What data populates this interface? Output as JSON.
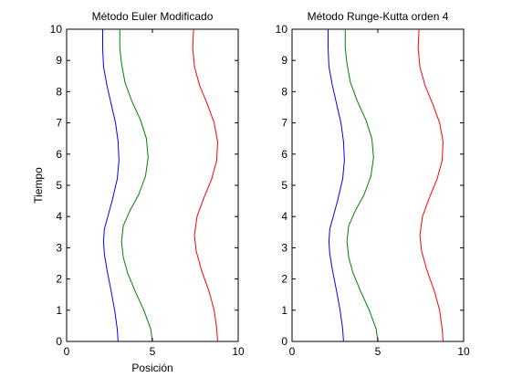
{
  "figure": {
    "background": "#ffffff",
    "axis_color": "#000000"
  },
  "chart_data": [
    {
      "type": "line",
      "title": "Método Euler Modificado",
      "xlabel": "Posición",
      "ylabel": "Tiempo",
      "xlim": [
        0,
        10
      ],
      "ylim": [
        0,
        10
      ],
      "xticks": [
        "0",
        "5",
        "10"
      ],
      "yticks": [
        "0",
        "1",
        "2",
        "3",
        "4",
        "5",
        "6",
        "7",
        "8",
        "9",
        "10"
      ],
      "grid": false,
      "series": [
        {
          "color": "#0000ff",
          "points": [
            [
              3.0,
              0
            ],
            [
              2.95,
              0.4
            ],
            [
              2.8,
              1.0
            ],
            [
              2.6,
              1.6
            ],
            [
              2.35,
              2.3
            ],
            [
              2.2,
              2.8
            ],
            [
              2.15,
              3.2
            ],
            [
              2.2,
              3.6
            ],
            [
              2.4,
              4.0
            ],
            [
              2.65,
              4.5
            ],
            [
              2.95,
              5.2
            ],
            [
              3.05,
              5.8
            ],
            [
              3.0,
              6.4
            ],
            [
              2.85,
              7.0
            ],
            [
              2.6,
              7.6
            ],
            [
              2.35,
              8.2
            ],
            [
              2.15,
              8.8
            ],
            [
              2.1,
              9.4
            ],
            [
              2.1,
              10
            ]
          ]
        },
        {
          "color": "#008000",
          "points": [
            [
              5.0,
              0
            ],
            [
              4.9,
              0.4
            ],
            [
              4.5,
              1.0
            ],
            [
              4.0,
              1.6
            ],
            [
              3.55,
              2.2
            ],
            [
              3.3,
              2.7
            ],
            [
              3.2,
              3.2
            ],
            [
              3.3,
              3.7
            ],
            [
              3.7,
              4.2
            ],
            [
              4.2,
              4.7
            ],
            [
              4.6,
              5.3
            ],
            [
              4.75,
              5.9
            ],
            [
              4.65,
              6.5
            ],
            [
              4.3,
              7.1
            ],
            [
              3.8,
              7.7
            ],
            [
              3.4,
              8.3
            ],
            [
              3.2,
              8.9
            ],
            [
              3.1,
              9.4
            ],
            [
              3.1,
              10
            ]
          ]
        },
        {
          "color": "#ff0000",
          "points": [
            [
              8.8,
              0
            ],
            [
              8.75,
              0.4
            ],
            [
              8.6,
              1.0
            ],
            [
              8.3,
              1.6
            ],
            [
              7.85,
              2.3
            ],
            [
              7.55,
              2.9
            ],
            [
              7.45,
              3.4
            ],
            [
              7.6,
              4.0
            ],
            [
              8.0,
              4.6
            ],
            [
              8.45,
              5.2
            ],
            [
              8.75,
              5.8
            ],
            [
              8.8,
              6.4
            ],
            [
              8.6,
              7.0
            ],
            [
              8.2,
              7.6
            ],
            [
              7.75,
              8.2
            ],
            [
              7.45,
              8.8
            ],
            [
              7.35,
              9.4
            ],
            [
              7.4,
              10
            ]
          ]
        }
      ]
    },
    {
      "type": "line",
      "title": "Método Runge-Kutta orden 4",
      "xlabel": "",
      "ylabel": "",
      "xlim": [
        0,
        10
      ],
      "ylim": [
        0,
        10
      ],
      "xticks": [
        "0",
        "5",
        "10"
      ],
      "yticks": [
        "0",
        "1",
        "2",
        "3",
        "4",
        "5",
        "6",
        "7",
        "8",
        "9",
        "10"
      ],
      "grid": false,
      "series": [
        {
          "color": "#0000ff",
          "points": [
            [
              3.0,
              0
            ],
            [
              2.95,
              0.4
            ],
            [
              2.8,
              1.0
            ],
            [
              2.6,
              1.6
            ],
            [
              2.35,
              2.3
            ],
            [
              2.2,
              2.8
            ],
            [
              2.15,
              3.2
            ],
            [
              2.2,
              3.6
            ],
            [
              2.4,
              4.0
            ],
            [
              2.65,
              4.5
            ],
            [
              2.95,
              5.2
            ],
            [
              3.05,
              5.8
            ],
            [
              3.0,
              6.4
            ],
            [
              2.85,
              7.0
            ],
            [
              2.6,
              7.6
            ],
            [
              2.35,
              8.2
            ],
            [
              2.15,
              8.8
            ],
            [
              2.1,
              9.4
            ],
            [
              2.1,
              10
            ]
          ]
        },
        {
          "color": "#008000",
          "points": [
            [
              5.0,
              0
            ],
            [
              4.9,
              0.4
            ],
            [
              4.5,
              1.0
            ],
            [
              4.0,
              1.6
            ],
            [
              3.55,
              2.2
            ],
            [
              3.3,
              2.7
            ],
            [
              3.2,
              3.2
            ],
            [
              3.3,
              3.7
            ],
            [
              3.7,
              4.2
            ],
            [
              4.2,
              4.7
            ],
            [
              4.6,
              5.3
            ],
            [
              4.75,
              5.9
            ],
            [
              4.65,
              6.5
            ],
            [
              4.3,
              7.1
            ],
            [
              3.8,
              7.7
            ],
            [
              3.4,
              8.3
            ],
            [
              3.2,
              8.9
            ],
            [
              3.1,
              9.4
            ],
            [
              3.1,
              10
            ]
          ]
        },
        {
          "color": "#ff0000",
          "points": [
            [
              8.8,
              0
            ],
            [
              8.75,
              0.4
            ],
            [
              8.6,
              1.0
            ],
            [
              8.3,
              1.6
            ],
            [
              7.85,
              2.3
            ],
            [
              7.55,
              2.9
            ],
            [
              7.45,
              3.4
            ],
            [
              7.6,
              4.0
            ],
            [
              8.0,
              4.6
            ],
            [
              8.45,
              5.2
            ],
            [
              8.75,
              5.8
            ],
            [
              8.8,
              6.4
            ],
            [
              8.6,
              7.0
            ],
            [
              8.2,
              7.6
            ],
            [
              7.75,
              8.2
            ],
            [
              7.45,
              8.8
            ],
            [
              7.35,
              9.4
            ],
            [
              7.4,
              10
            ]
          ]
        }
      ]
    }
  ]
}
